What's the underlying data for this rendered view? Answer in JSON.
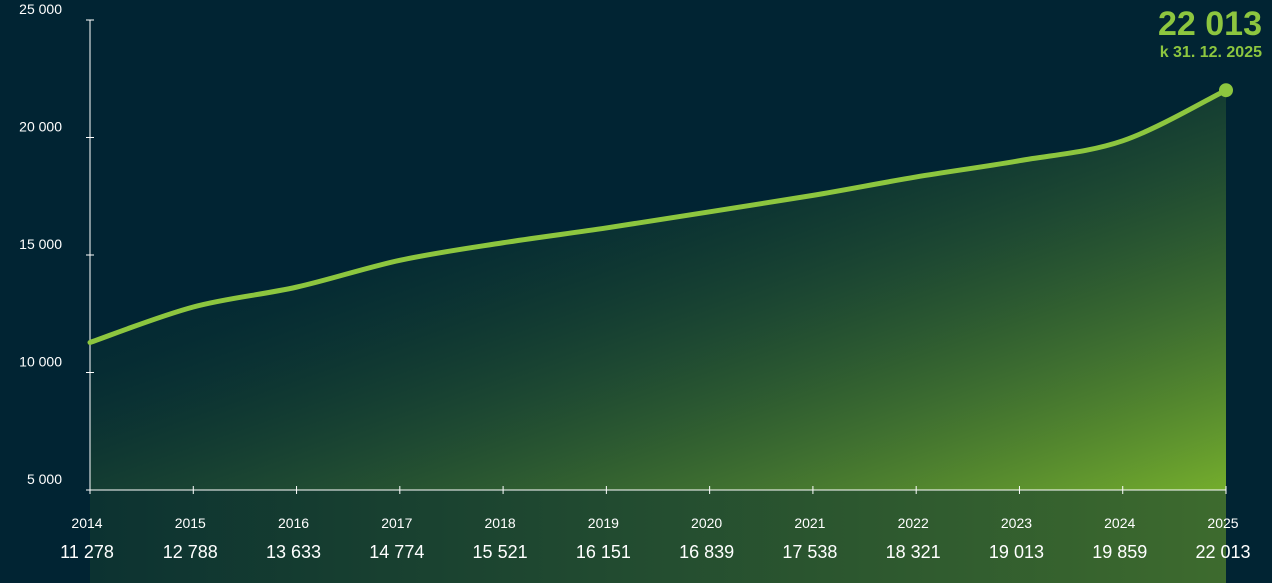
{
  "colors": {
    "background": "#012433",
    "line": "#8DC63F",
    "axis": "#FFFFFF",
    "callout": "#8DC63F"
  },
  "callout": {
    "value": "22 013",
    "date": "k 31. 12. 2025"
  },
  "chart_data": {
    "type": "area",
    "x": [
      2014,
      2015,
      2016,
      2017,
      2018,
      2019,
      2020,
      2021,
      2022,
      2023,
      2024,
      2025
    ],
    "series": [
      {
        "values": [
          11278,
          12788,
          13633,
          14774,
          15521,
          16151,
          16839,
          17538,
          18321,
          19013,
          19859,
          22013
        ]
      }
    ],
    "value_labels": [
      "11 278",
      "12 788",
      "13 633",
      "14 774",
      "15 521",
      "16 151",
      "16 839",
      "17 538",
      "18 321",
      "19 013",
      "19 859",
      "22 013"
    ],
    "y_ticks": [
      5000,
      10000,
      15000,
      20000,
      25000
    ],
    "y_tick_labels": [
      "5 000",
      "10 000",
      "15 000",
      "20 000",
      "25 000"
    ],
    "ylim": [
      5000,
      25000
    ],
    "title": "",
    "xlabel": "",
    "ylabel": "",
    "grid": false,
    "legend": "none"
  }
}
